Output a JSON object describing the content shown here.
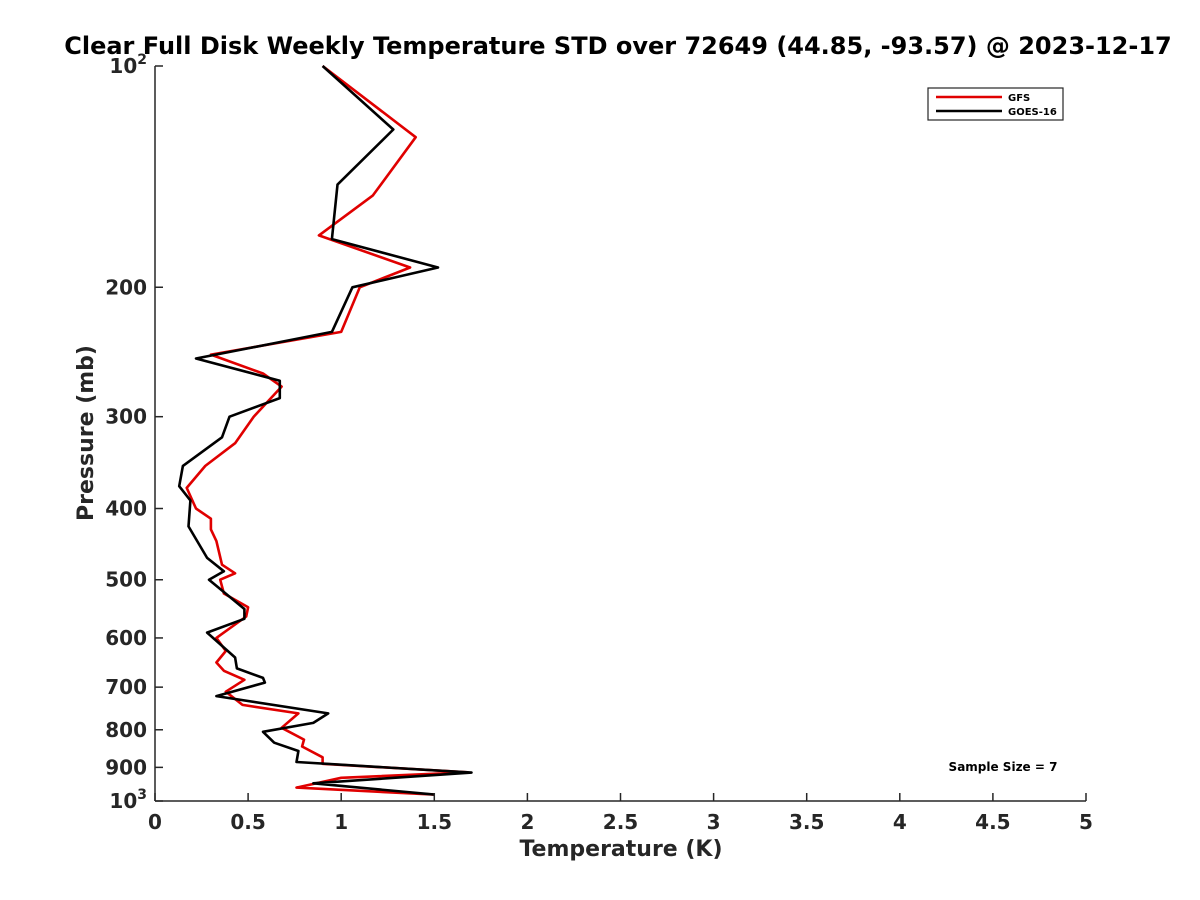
{
  "chart_data": {
    "type": "line",
    "title": "Clear Full Disk Weekly Temperature STD over 72649 (44.85, -93.57) @ 2023-12-17",
    "xlabel": "Temperature (K)",
    "ylabel": "Pressure (mb)",
    "xlim": [
      0,
      5
    ],
    "ylim": [
      100,
      1000
    ],
    "y_scale": "log",
    "y_reversed": true,
    "grid": false,
    "legend_position": "top-right",
    "x_ticks": [
      {
        "value": 0,
        "label": "0"
      },
      {
        "value": 0.5,
        "label": "0.5"
      },
      {
        "value": 1,
        "label": "1"
      },
      {
        "value": 1.5,
        "label": "1.5"
      },
      {
        "value": 2,
        "label": "2"
      },
      {
        "value": 2.5,
        "label": "2.5"
      },
      {
        "value": 3,
        "label": "3"
      },
      {
        "value": 3.5,
        "label": "3.5"
      },
      {
        "value": 4,
        "label": "4"
      },
      {
        "value": 4.5,
        "label": "4.5"
      },
      {
        "value": 5,
        "label": "5"
      }
    ],
    "y_ticks": [
      {
        "value": 100,
        "base": "10",
        "exp": "2"
      },
      {
        "value": 200,
        "label": "200"
      },
      {
        "value": 300,
        "label": "300"
      },
      {
        "value": 400,
        "label": "400"
      },
      {
        "value": 500,
        "label": "500"
      },
      {
        "value": 600,
        "label": "600"
      },
      {
        "value": 700,
        "label": "700"
      },
      {
        "value": 800,
        "label": "800"
      },
      {
        "value": 900,
        "label": "900"
      },
      {
        "value": 1000,
        "base": "10",
        "exp": "3"
      }
    ],
    "annotation": "Sample Size = 7",
    "series": [
      {
        "name": "GFS",
        "color": "#e00000",
        "points": [
          [
            0.9,
            100
          ],
          [
            1.4,
            125
          ],
          [
            1.17,
            150
          ],
          [
            0.88,
            170
          ],
          [
            1.37,
            188
          ],
          [
            1.1,
            200
          ],
          [
            1.0,
            230
          ],
          [
            0.3,
            247
          ],
          [
            0.58,
            262
          ],
          [
            0.68,
            273
          ],
          [
            0.53,
            300
          ],
          [
            0.43,
            326
          ],
          [
            0.27,
            350
          ],
          [
            0.17,
            375
          ],
          [
            0.22,
            400
          ],
          [
            0.3,
            413
          ],
          [
            0.3,
            427
          ],
          [
            0.33,
            443
          ],
          [
            0.36,
            477
          ],
          [
            0.43,
            490
          ],
          [
            0.35,
            500
          ],
          [
            0.37,
            522
          ],
          [
            0.5,
            545
          ],
          [
            0.49,
            561
          ],
          [
            0.33,
            600
          ],
          [
            0.38,
            625
          ],
          [
            0.33,
            648
          ],
          [
            0.37,
            665
          ],
          [
            0.48,
            684
          ],
          [
            0.38,
            710
          ],
          [
            0.47,
            740
          ],
          [
            0.77,
            760
          ],
          [
            0.68,
            795
          ],
          [
            0.8,
            825
          ],
          [
            0.79,
            843
          ],
          [
            0.9,
            872
          ],
          [
            0.9,
            890
          ],
          [
            1.68,
            914
          ],
          [
            1.0,
            930
          ],
          [
            0.76,
            959
          ],
          [
            1.5,
            980
          ]
        ]
      },
      {
        "name": "GOES-16",
        "color": "#000000",
        "points": [
          [
            0.9,
            100
          ],
          [
            1.28,
            122
          ],
          [
            0.98,
            145
          ],
          [
            0.95,
            172
          ],
          [
            1.52,
            188
          ],
          [
            1.06,
            200
          ],
          [
            0.95,
            230
          ],
          [
            0.22,
            250
          ],
          [
            0.67,
            268
          ],
          [
            0.67,
            283
          ],
          [
            0.4,
            300
          ],
          [
            0.36,
            320
          ],
          [
            0.15,
            350
          ],
          [
            0.13,
            373
          ],
          [
            0.19,
            390
          ],
          [
            0.18,
            423
          ],
          [
            0.28,
            467
          ],
          [
            0.37,
            487
          ],
          [
            0.29,
            500
          ],
          [
            0.48,
            548
          ],
          [
            0.48,
            565
          ],
          [
            0.28,
            590
          ],
          [
            0.43,
            638
          ],
          [
            0.44,
            660
          ],
          [
            0.58,
            680
          ],
          [
            0.59,
            690
          ],
          [
            0.33,
            720
          ],
          [
            0.93,
            760
          ],
          [
            0.85,
            783
          ],
          [
            0.58,
            805
          ],
          [
            0.64,
            833
          ],
          [
            0.77,
            855
          ],
          [
            0.76,
            885
          ],
          [
            1.7,
            915
          ],
          [
            0.85,
            946
          ],
          [
            1.5,
            980
          ]
        ]
      }
    ]
  }
}
